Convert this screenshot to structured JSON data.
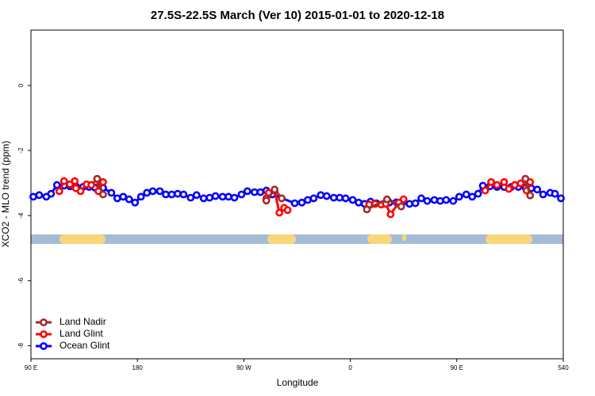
{
  "chart_data": {
    "type": "line",
    "title": "27.5S-22.5S March (Ver 10)   2015-01-01 to 2020-12-18",
    "x_label": "Longitude",
    "y_label": "XCO2 - MLO trend (ppm)",
    "xlim": [
      90,
      540
    ],
    "ylim": [
      -8.4,
      1.7
    ],
    "xticks": [
      {
        "value": 90,
        "label": "90 E"
      },
      180,
      {
        "value": 270,
        "label": "90 W"
      },
      {
        "value": 360,
        "label": "0"
      },
      {
        "value": 450,
        "label": "90 E"
      },
      540
    ],
    "yticks": [
      0,
      -2,
      -4,
      -6,
      -8
    ],
    "legend": "bottom-left",
    "series": [
      {
        "name": "Land Nadir",
        "color": "#a52a2a",
        "x": [
          146,
          151,
          null,
          289,
          296,
          302,
          null,
          374,
          391,
          403,
          null,
          508,
          512
        ],
        "values": [
          -2.87,
          -3.35,
          null,
          -3.54,
          -3.2,
          -3.47,
          null,
          -3.81,
          -3.5,
          -3.72,
          null,
          -2.87,
          -3.38
        ]
      },
      {
        "name": "Land Glint",
        "color": "#ff0000",
        "x": [
          114,
          118,
          123,
          127,
          128,
          132,
          137,
          141,
          146,
          147,
          151,
          null,
          289,
          291,
          296,
          300,
          304,
          307,
          null,
          376,
          381,
          386,
          390,
          394,
          401,
          405,
          null,
          474,
          479,
          484,
          490,
          494,
          499,
          504,
          508,
          509,
          512
        ],
        "values": [
          -3.25,
          -2.94,
          -3.04,
          -2.94,
          -3.16,
          -3.25,
          -3.04,
          -3.06,
          -2.87,
          -3.25,
          -2.97,
          null,
          -3.47,
          -3.3,
          -3.23,
          -3.91,
          -3.76,
          -3.83,
          null,
          -3.66,
          -3.64,
          -3.66,
          -3.64,
          -3.96,
          -3.6,
          -3.5,
          null,
          -3.23,
          -2.97,
          -3.06,
          -2.97,
          -3.18,
          -3.06,
          -3.01,
          -2.87,
          -3.23,
          -2.97
        ]
      },
      {
        "name": "Ocean Glint",
        "color": "#0000ff",
        "x": [
          92,
          97,
          103,
          107,
          112,
          118,
          123,
          128,
          134,
          139,
          144,
          151,
          158,
          163,
          168,
          173,
          178,
          183,
          188,
          193,
          199,
          204,
          209,
          214,
          219,
          225,
          230,
          236,
          241,
          246,
          252,
          257,
          262,
          268,
          273,
          279,
          284,
          289,
          294,
          313,
          319,
          324,
          329,
          335,
          340,
          346,
          351,
          356,
          362,
          367,
          372,
          377,
          382,
          388,
          393,
          399,
          405,
          410,
          415,
          420,
          425,
          431,
          436,
          441,
          447,
          452,
          458,
          463,
          468,
          472,
          478,
          484,
          490,
          496,
          502,
          508,
          513,
          518,
          523,
          529,
          533,
          538
        ],
        "values": [
          -3.42,
          -3.37,
          -3.42,
          -3.33,
          -3.06,
          -3.08,
          -3.1,
          -3.1,
          -3.12,
          -3.12,
          -3.14,
          -3.15,
          -3.3,
          -3.47,
          -3.42,
          -3.5,
          -3.6,
          -3.42,
          -3.3,
          -3.25,
          -3.25,
          -3.35,
          -3.35,
          -3.33,
          -3.35,
          -3.45,
          -3.37,
          -3.47,
          -3.45,
          -3.4,
          -3.42,
          -3.42,
          -3.45,
          -3.35,
          -3.25,
          -3.28,
          -3.28,
          -3.23,
          -3.35,
          -3.62,
          -3.6,
          -3.52,
          -3.47,
          -3.37,
          -3.4,
          -3.45,
          -3.45,
          -3.47,
          -3.52,
          -3.6,
          -3.64,
          -3.57,
          -3.62,
          -3.64,
          -3.6,
          -3.59,
          -3.57,
          -3.64,
          -3.62,
          -3.47,
          -3.55,
          -3.52,
          -3.55,
          -3.52,
          -3.55,
          -3.42,
          -3.35,
          -3.42,
          -3.33,
          -3.08,
          -3.1,
          -3.12,
          -3.12,
          -3.12,
          -3.12,
          -3.14,
          -3.16,
          -3.2,
          -3.35,
          -3.3,
          -3.33,
          -3.47
        ]
      }
    ]
  }
}
